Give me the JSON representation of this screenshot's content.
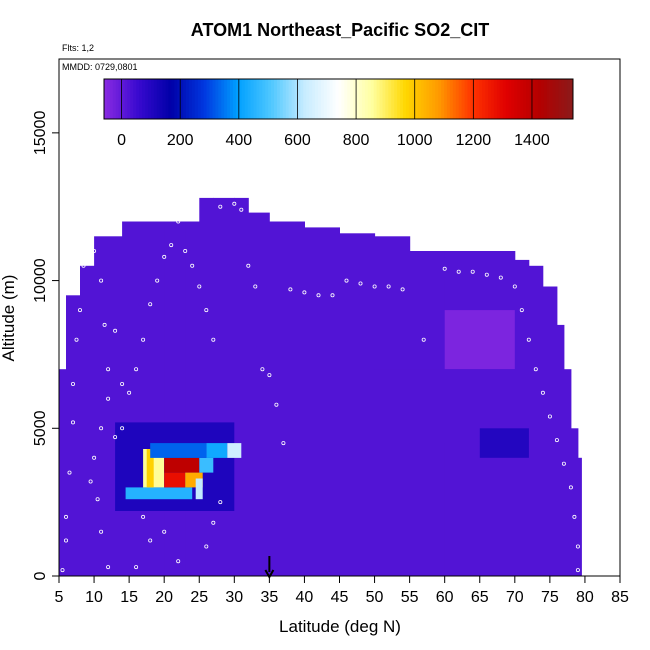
{
  "chart_data": {
    "type": "heatmap",
    "title": "ATOM1 Northeast_Pacific SO2_CIT",
    "flights_label": "Flts: 1,2",
    "dates_label": "MMDD: 0729,0801",
    "xlabel": "Latitude (deg N)",
    "ylabel": "Altitude (m)",
    "xlim": [
      5,
      85
    ],
    "ylim": [
      0,
      17500
    ],
    "x_ticks": [
      "5",
      "10",
      "15",
      "20",
      "25",
      "30",
      "35",
      "40",
      "45",
      "50",
      "55",
      "60",
      "65",
      "70",
      "75",
      "80",
      "85"
    ],
    "y_ticks": [
      "0",
      "5000",
      "10000",
      "15000"
    ],
    "colorbar": {
      "min": -60,
      "max": 1540,
      "ticks": [
        "0",
        "200",
        "400",
        "600",
        "800",
        "1000",
        "1200",
        "1400"
      ],
      "colors": [
        "#8a2be2",
        "#3a0ad0",
        "#0000a8",
        "#0038e0",
        "#00a0ff",
        "#50c8ff",
        "#c8ecff",
        "#ffffff",
        "#ffffa0",
        "#ffd700",
        "#ff9900",
        "#ff3300",
        "#e00000",
        "#b40000",
        "#8b1a1a"
      ]
    },
    "background_value": 20,
    "envelope": [
      [
        5,
        0,
        7000
      ],
      [
        6,
        0,
        9500
      ],
      [
        8,
        0,
        10500
      ],
      [
        10,
        0,
        11500
      ],
      [
        14,
        0,
        12000
      ],
      [
        20,
        0,
        12000
      ],
      [
        23,
        0,
        12000
      ],
      [
        25,
        0,
        12800
      ],
      [
        27,
        0,
        12800
      ],
      [
        30,
        0,
        12800
      ],
      [
        32,
        0,
        12300
      ],
      [
        35,
        0,
        12000
      ],
      [
        40,
        0,
        11800
      ],
      [
        45,
        0,
        11600
      ],
      [
        50,
        0,
        11500
      ],
      [
        55,
        0,
        11000
      ],
      [
        60,
        0,
        11000
      ],
      [
        65,
        0,
        11000
      ],
      [
        67,
        0,
        11000
      ],
      [
        70,
        0,
        10700
      ],
      [
        72,
        0,
        10500
      ],
      [
        74,
        0,
        9800
      ],
      [
        76,
        0,
        8500
      ],
      [
        77,
        0,
        7000
      ],
      [
        78,
        0,
        5000
      ],
      [
        79,
        0,
        4000
      ],
      [
        79.5,
        0,
        0
      ]
    ],
    "so2_cells": [
      {
        "lat_min": 13,
        "lat_max": 30,
        "alt_min": 2200,
        "alt_max": 5200,
        "value": 110
      },
      {
        "lat_min": 14.5,
        "lat_max": 24,
        "alt_min": 2600,
        "alt_max": 3000,
        "value": 450
      },
      {
        "lat_min": 17,
        "lat_max": 20,
        "alt_min": 3000,
        "alt_max": 4300,
        "value": 860
      },
      {
        "lat_min": 17.5,
        "lat_max": 18.5,
        "alt_min": 3000,
        "alt_max": 4300,
        "value": 980
      },
      {
        "lat_min": 20,
        "lat_max": 23,
        "alt_min": 3000,
        "alt_max": 3500,
        "value": 1280
      },
      {
        "lat_min": 20,
        "lat_max": 25,
        "alt_min": 3500,
        "alt_max": 4000,
        "value": 1400
      },
      {
        "lat_min": 23,
        "lat_max": 25.5,
        "alt_min": 3000,
        "alt_max": 3500,
        "value": 1050
      },
      {
        "lat_min": 25,
        "lat_max": 27,
        "alt_min": 3500,
        "alt_max": 4000,
        "value": 480
      },
      {
        "lat_min": 26,
        "lat_max": 29,
        "alt_min": 4000,
        "alt_max": 4500,
        "value": 420
      },
      {
        "lat_min": 29,
        "lat_max": 31,
        "alt_min": 4000,
        "alt_max": 4500,
        "value": 640
      },
      {
        "lat_min": 18,
        "lat_max": 26,
        "alt_min": 4000,
        "alt_max": 4500,
        "value": 330
      },
      {
        "lat_min": 24.5,
        "lat_max": 25.5,
        "alt_min": 2600,
        "alt_max": 3300,
        "value": 620
      },
      {
        "lat_min": 60,
        "lat_max": 70,
        "alt_min": 7000,
        "alt_max": 9000,
        "value": -40
      },
      {
        "lat_min": 50,
        "lat_max": 70,
        "alt_min": 4500,
        "alt_max": 7000,
        "value": 20
      },
      {
        "lat_min": 65,
        "lat_max": 72,
        "alt_min": 4000,
        "alt_max": 5000,
        "value": 100
      }
    ],
    "flight_points": [
      [
        5.5,
        200
      ],
      [
        6,
        1200
      ],
      [
        6,
        2000
      ],
      [
        6.5,
        3500
      ],
      [
        7,
        5200
      ],
      [
        7,
        6500
      ],
      [
        7.5,
        8000
      ],
      [
        8,
        9000
      ],
      [
        8.5,
        10500
      ],
      [
        10,
        11000
      ],
      [
        11,
        10000
      ],
      [
        11.5,
        8500
      ],
      [
        12,
        7000
      ],
      [
        12,
        6000
      ],
      [
        11,
        5000
      ],
      [
        10,
        4000
      ],
      [
        9.5,
        3200
      ],
      [
        10.5,
        2600
      ],
      [
        11,
        1500
      ],
      [
        12,
        300
      ],
      [
        13,
        4700
      ],
      [
        14,
        5000
      ],
      [
        15,
        6200
      ],
      [
        16,
        7000
      ],
      [
        17,
        8000
      ],
      [
        18,
        9200
      ],
      [
        19,
        10000
      ],
      [
        20,
        10800
      ],
      [
        21,
        11200
      ],
      [
        22,
        12000
      ],
      [
        23,
        11000
      ],
      [
        24,
        10500
      ],
      [
        25,
        9800
      ],
      [
        26,
        9000
      ],
      [
        27,
        8000
      ],
      [
        28,
        12500
      ],
      [
        30,
        12600
      ],
      [
        31,
        12400
      ],
      [
        32,
        10500
      ],
      [
        33,
        9800
      ],
      [
        34,
        7000
      ],
      [
        35,
        6800
      ],
      [
        36,
        5800
      ],
      [
        37,
        4500
      ],
      [
        38,
        9700
      ],
      [
        40,
        9600
      ],
      [
        42,
        9500
      ],
      [
        44,
        9500
      ],
      [
        46,
        10000
      ],
      [
        48,
        9900
      ],
      [
        50,
        9800
      ],
      [
        52,
        9800
      ],
      [
        54,
        9700
      ],
      [
        57,
        8000
      ],
      [
        60,
        10400
      ],
      [
        62,
        10300
      ],
      [
        64,
        10300
      ],
      [
        66,
        10200
      ],
      [
        68,
        10100
      ],
      [
        70,
        9800
      ],
      [
        71,
        9000
      ],
      [
        72,
        8000
      ],
      [
        73,
        7000
      ],
      [
        74,
        6200
      ],
      [
        75,
        5400
      ],
      [
        76,
        4600
      ],
      [
        77,
        3800
      ],
      [
        78,
        3000
      ],
      [
        78.5,
        2000
      ],
      [
        79,
        1000
      ],
      [
        79,
        200
      ],
      [
        17,
        2000
      ],
      [
        18,
        1200
      ],
      [
        16,
        300
      ],
      [
        22,
        500
      ],
      [
        26,
        1000
      ],
      [
        27,
        1800
      ],
      [
        28,
        2500
      ],
      [
        14,
        6500
      ],
      [
        13,
        8300
      ],
      [
        20,
        1500
      ]
    ],
    "marker_latitude": 35
  }
}
